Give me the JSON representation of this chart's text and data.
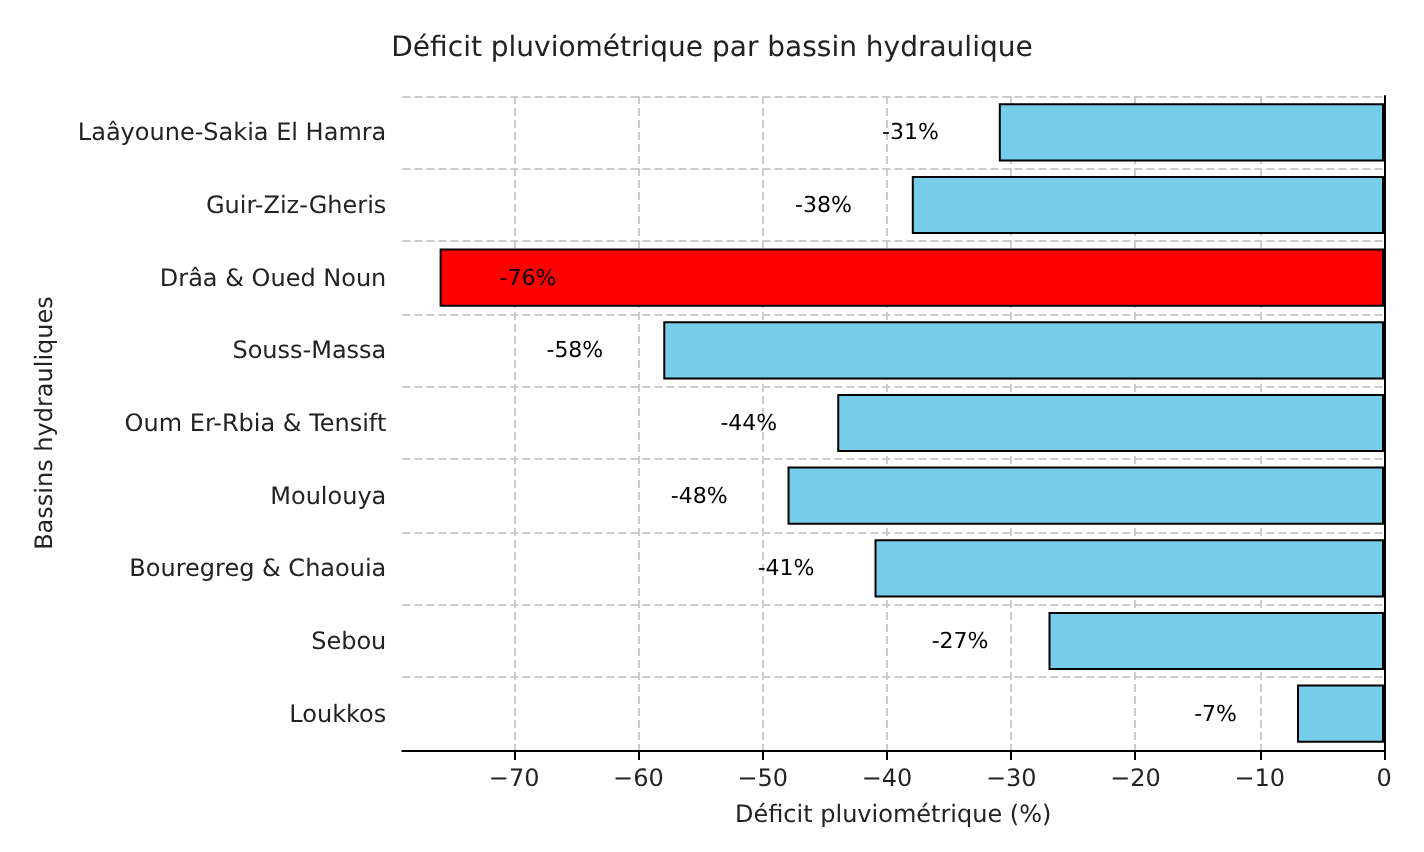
{
  "chart_data": {
    "type": "bar",
    "orientation": "horizontal",
    "title": "Déficit pluviométrique par bassin hydraulique",
    "xlabel": "Déficit pluviométrique (%)",
    "ylabel": "Bassins hydrauliques",
    "categories": [
      "Laâyoune-Sakia El Hamra",
      "Guir-Ziz-Gheris",
      "Drâa & Oued Noun",
      "Souss-Massa",
      "Oum Er-Rbia & Tensift",
      "Moulouya",
      "Bouregreg & Chaouia",
      "Sebou",
      "Loukkos"
    ],
    "values": [
      -31,
      -38,
      -76,
      -58,
      -44,
      -48,
      -41,
      -27,
      -7
    ],
    "colors": [
      "#76cdea",
      "#76cdea",
      "#ff0000",
      "#76cdea",
      "#76cdea",
      "#76cdea",
      "#76cdea",
      "#76cdea",
      "#76cdea"
    ],
    "value_labels": [
      "-31%",
      "-38%",
      "-76%",
      "-58%",
      "-44%",
      "-48%",
      "-41%",
      "-27%",
      "-7%"
    ],
    "xlim": [
      -79,
      0
    ],
    "xticks": [
      {
        "value": -70,
        "label": "−70"
      },
      {
        "value": -60,
        "label": "−60"
      },
      {
        "value": -50,
        "label": "−50"
      },
      {
        "value": -40,
        "label": "−40"
      },
      {
        "value": -30,
        "label": "−30"
      },
      {
        "value": -20,
        "label": "−20"
      },
      {
        "value": -10,
        "label": "−10"
      },
      0
    ],
    "grid": true
  }
}
